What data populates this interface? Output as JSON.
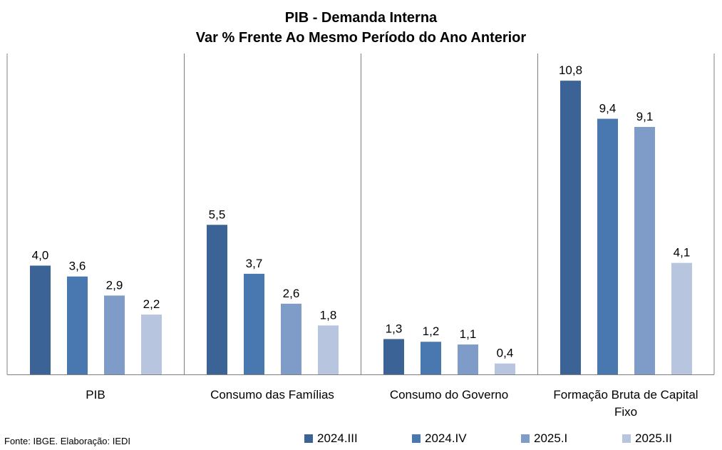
{
  "chart_data": {
    "type": "bar",
    "title": "PIB - Demanda Interna",
    "subtitle": "Var % Frente Ao Mesmo Período do Ano Anterior",
    "categories": [
      "PIB",
      "Consumo das Famílias",
      "Consumo do Governo",
      "Formação Bruta de Capital Fixo"
    ],
    "category_lines": [
      [
        "PIB"
      ],
      [
        "Consumo das Famílias"
      ],
      [
        "Consumo do Governo"
      ],
      [
        "Formação Bruta de Capital",
        "Fixo"
      ]
    ],
    "series": [
      {
        "name": "2024.III",
        "color": "#3c6396",
        "values": [
          4.0,
          5.5,
          1.3,
          10.8
        ],
        "labels": [
          "4,0",
          "5,5",
          "1,3",
          "10,8"
        ]
      },
      {
        "name": "2024.IV",
        "color": "#4978b1",
        "values": [
          3.6,
          3.7,
          1.2,
          9.4
        ],
        "labels": [
          "3,6",
          "3,7",
          "1,2",
          "9,4"
        ]
      },
      {
        "name": "2025.I",
        "color": "#7f9cc8",
        "values": [
          2.9,
          2.6,
          1.1,
          9.1
        ],
        "labels": [
          "2,9",
          "2,6",
          "1,1",
          "9,1"
        ]
      },
      {
        "name": "2025.II",
        "color": "#b7c5de",
        "values": [
          2.2,
          1.8,
          0.4,
          4.1
        ],
        "labels": [
          "2,2",
          "1,8",
          "0,4",
          "4,1"
        ]
      }
    ],
    "ylim": [
      0,
      11.8
    ],
    "grid": false,
    "legend_position": "bottom",
    "xlabel": "",
    "ylabel": ""
  },
  "footer": "Fonte: IBGE. Elaboração: IEDI"
}
